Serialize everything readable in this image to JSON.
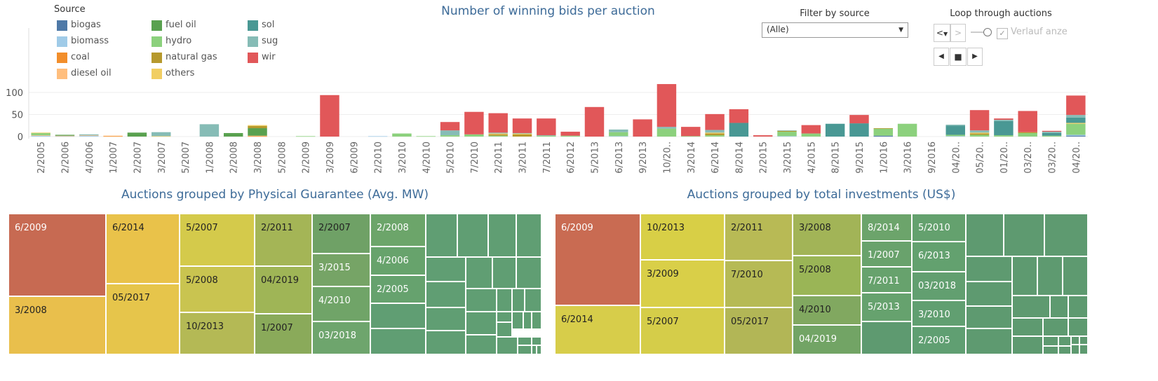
{
  "bar_chart": {
    "title": "Number of  winning bids per auction",
    "legend_title": "Source",
    "legend_items": [
      {
        "label": "biogas",
        "color": "#4e79a7"
      },
      {
        "label": "biomass",
        "color": "#a0cbe8"
      },
      {
        "label": "coal",
        "color": "#f28e2b"
      },
      {
        "label": "diesel oil",
        "color": "#ffbe7d"
      },
      {
        "label": "fuel oil",
        "color": "#59a14f"
      },
      {
        "label": "hydro",
        "color": "#8cd17d"
      },
      {
        "label": "natural gas",
        "color": "#b6992d"
      },
      {
        "label": "others",
        "color": "#f1ce63"
      },
      {
        "label": "sol",
        "color": "#499894"
      },
      {
        "label": "sug",
        "color": "#86bcb6"
      },
      {
        "label": "wir",
        "color": "#e15759"
      }
    ]
  },
  "filter": {
    "label": "Filter by source",
    "value": "(Alle)"
  },
  "loop": {
    "label": "Loop through auctions",
    "prev_label": "<",
    "next_label": ">",
    "check_label": "Verlauf anze",
    "check_mark": "✓"
  },
  "chart_data": [
    {
      "type": "bar",
      "stacked": true,
      "title": "Number of  winning bids per auction",
      "xlabel": "",
      "ylabel": "",
      "ylim": [
        0,
        125
      ],
      "yticks": [
        0,
        50,
        100
      ],
      "grid": true,
      "legend_position": "top-left",
      "categories": [
        "2/2005",
        "2/2006",
        "4/2006",
        "1/2007",
        "2/2007",
        "3/2007",
        "5/2007",
        "1/2008",
        "2/2008",
        "3/2008",
        "5/2008",
        "2/2009",
        "3/2009",
        "6/2009",
        "2/2010",
        "3/2010",
        "4/2010",
        "5/2010",
        "7/2010",
        "2/2011",
        "3/2011",
        "7/2011",
        "6/2012",
        "5/2013",
        "6/2013",
        "9/2013",
        "10/20..",
        "3/2014",
        "6/2014",
        "8/2014",
        "2/2015",
        "3/2015",
        "4/2015",
        "8/2015",
        "9/2015",
        "1/2016",
        "3/2016",
        "9/2016",
        "04/20..",
        "05/20..",
        "01/20..",
        "03/20..",
        "03/20..",
        "04/20.."
      ],
      "series": [
        {
          "name": "biogas",
          "color": "#4e79a7",
          "values": [
            0,
            0,
            0,
            0,
            0,
            0,
            0,
            0,
            0,
            0,
            0,
            0,
            0,
            0,
            0,
            0,
            0,
            0,
            0,
            0,
            0,
            0,
            0,
            0,
            0,
            0,
            0,
            0,
            0,
            0,
            0,
            0,
            0,
            0,
            0,
            2,
            0,
            0,
            0,
            0,
            0,
            0,
            0,
            2
          ]
        },
        {
          "name": "biomass",
          "color": "#a0cbe8",
          "values": [
            2,
            1,
            2,
            0,
            0,
            0,
            0,
            0,
            0,
            0,
            0,
            0,
            0,
            0,
            1,
            0,
            0,
            0,
            0,
            0,
            0,
            0,
            0,
            0,
            1,
            0,
            0,
            0,
            0,
            0,
            0,
            1,
            0,
            0,
            0,
            0,
            0,
            0,
            1,
            0,
            0,
            0,
            0,
            2
          ]
        },
        {
          "name": "coal",
          "color": "#f28e2b",
          "values": [
            0,
            0,
            0,
            1,
            0,
            0,
            0,
            0,
            0,
            1,
            0,
            0,
            0,
            0,
            0,
            0,
            0,
            0,
            0,
            0,
            0,
            0,
            0,
            0,
            0,
            0,
            0,
            0,
            0,
            0,
            0,
            0,
            0,
            0,
            0,
            0,
            0,
            0,
            0,
            0,
            0,
            0,
            0,
            0
          ]
        },
        {
          "name": "diesel oil",
          "color": "#ffbe7d",
          "values": [
            1,
            1,
            1,
            1,
            0,
            0,
            0,
            0,
            0,
            1,
            0,
            0,
            0,
            0,
            0,
            0,
            0,
            0,
            0,
            0,
            0,
            0,
            0,
            0,
            0,
            0,
            0,
            0,
            0,
            0,
            0,
            0,
            0,
            0,
            0,
            0,
            0,
            0,
            0,
            0,
            0,
            0,
            0,
            0
          ]
        },
        {
          "name": "fuel oil",
          "color": "#59a14f",
          "values": [
            0,
            2,
            0,
            0,
            9,
            0,
            0,
            0,
            8,
            17,
            0,
            0,
            0,
            0,
            0,
            0,
            0,
            0,
            0,
            0,
            0,
            0,
            0,
            0,
            0,
            0,
            0,
            0,
            0,
            0,
            0,
            0,
            0,
            0,
            0,
            0,
            0,
            0,
            0,
            0,
            0,
            0,
            0,
            0
          ]
        },
        {
          "name": "hydro",
          "color": "#8cd17d",
          "values": [
            5,
            0,
            0,
            0,
            0,
            0,
            0,
            0,
            0,
            0,
            0,
            1,
            0,
            0,
            0,
            7,
            1,
            3,
            5,
            2,
            0,
            2,
            2,
            0,
            9,
            0,
            18,
            1,
            3,
            0,
            0,
            10,
            7,
            0,
            0,
            16,
            29,
            0,
            3,
            4,
            3,
            8,
            2,
            25
          ]
        },
        {
          "name": "natural gas",
          "color": "#b6992d",
          "values": [
            0,
            0,
            0,
            0,
            0,
            0,
            0,
            0,
            0,
            5,
            0,
            0,
            0,
            0,
            0,
            0,
            0,
            0,
            0,
            3,
            5,
            0,
            0,
            0,
            0,
            0,
            0,
            0,
            4,
            0,
            0,
            2,
            0,
            0,
            0,
            1,
            0,
            0,
            0,
            3,
            0,
            2,
            0,
            0
          ]
        },
        {
          "name": "others",
          "color": "#f1ce63",
          "values": [
            1,
            0,
            0,
            0,
            0,
            1,
            0,
            0,
            0,
            2,
            0,
            0,
            0,
            0,
            0,
            0,
            0,
            0,
            0,
            2,
            2,
            0,
            0,
            0,
            0,
            0,
            0,
            0,
            2,
            0,
            0,
            0,
            0,
            0,
            0,
            0,
            0,
            0,
            0,
            2,
            0,
            0,
            0,
            2
          ]
        },
        {
          "name": "sol",
          "color": "#499894",
          "values": [
            0,
            0,
            0,
            0,
            0,
            0,
            0,
            0,
            0,
            0,
            0,
            0,
            0,
            0,
            0,
            0,
            0,
            0,
            0,
            0,
            0,
            0,
            0,
            0,
            0,
            0,
            0,
            0,
            0,
            31,
            0,
            0,
            0,
            29,
            30,
            0,
            0,
            0,
            21,
            0,
            32,
            0,
            6,
            12
          ]
        },
        {
          "name": "sug",
          "color": "#86bcb6",
          "values": [
            0,
            0,
            2,
            0,
            0,
            9,
            0,
            28,
            0,
            0,
            0,
            0,
            0,
            0,
            0,
            0,
            0,
            11,
            0,
            2,
            1,
            1,
            0,
            0,
            6,
            0,
            4,
            0,
            6,
            0,
            0,
            1,
            0,
            0,
            0,
            0,
            0,
            0,
            2,
            5,
            3,
            0,
            3,
            6
          ]
        },
        {
          "name": "wir",
          "color": "#e15759",
          "values": [
            0,
            0,
            0,
            0,
            0,
            0,
            0,
            0,
            0,
            0,
            0,
            0,
            94,
            0,
            0,
            0,
            0,
            19,
            51,
            44,
            33,
            38,
            9,
            67,
            0,
            39,
            97,
            21,
            36,
            31,
            3,
            0,
            19,
            0,
            19,
            0,
            0,
            0,
            0,
            46,
            3,
            48,
            2,
            44
          ]
        }
      ]
    },
    {
      "type": "treemap",
      "title": "Auctions grouped by Physical Guarantee (Avg. MW)",
      "labels": [
        "6/2009",
        "3/2008",
        "6/2014",
        "05/2017",
        "5/2007",
        "5/2008",
        "10/2013",
        "2/2011",
        "04/2019",
        "1/2007",
        "2/2007",
        "3/2015",
        "4/2010",
        "03/2018",
        "2/2008",
        "4/2006",
        "2/2005"
      ]
    },
    {
      "type": "treemap",
      "title": "Auctions grouped by total investments (US$)",
      "labels": [
        "6/2009",
        "6/2014",
        "10/2013",
        "3/2009",
        "5/2007",
        "2/2011",
        "7/2010",
        "05/2017",
        "3/2008",
        "5/2008",
        "4/2010",
        "04/2019",
        "8/2014",
        "1/2007",
        "7/2011",
        "5/2013",
        "5/2010",
        "6/2013",
        "03/2018",
        "3/2010",
        "2/2005"
      ]
    }
  ]
}
